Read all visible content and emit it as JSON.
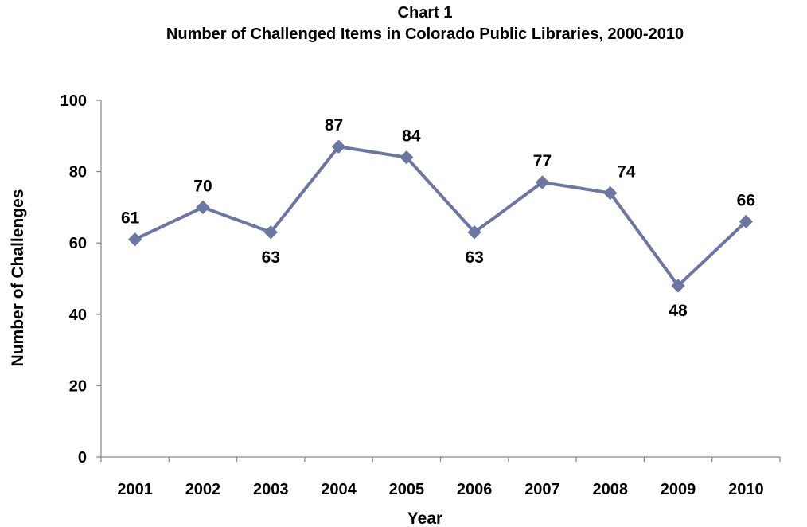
{
  "chart_data": {
    "type": "line",
    "title": "Chart 1",
    "subtitle": "Number of Challenged Items in Colorado Public Libraries, 2000-2010",
    "xlabel": "Year",
    "ylabel": "Number of Challenges",
    "categories": [
      "2001",
      "2002",
      "2003",
      "2004",
      "2005",
      "2006",
      "2007",
      "2008",
      "2009",
      "2010"
    ],
    "series": [
      {
        "values": [
          61,
          70,
          63,
          87,
          84,
          63,
          77,
          74,
          48,
          66
        ],
        "color": "#6B77A2",
        "marker": "diamond"
      }
    ],
    "data_labels": [
      "61",
      "70",
      "63",
      "87",
      "84",
      "63",
      "77",
      "74",
      "48",
      "66"
    ],
    "ylim": [
      0,
      100
    ],
    "yticks": [
      "0",
      "20",
      "40",
      "60",
      "80",
      "100"
    ],
    "grid": false,
    "legend": "none"
  }
}
